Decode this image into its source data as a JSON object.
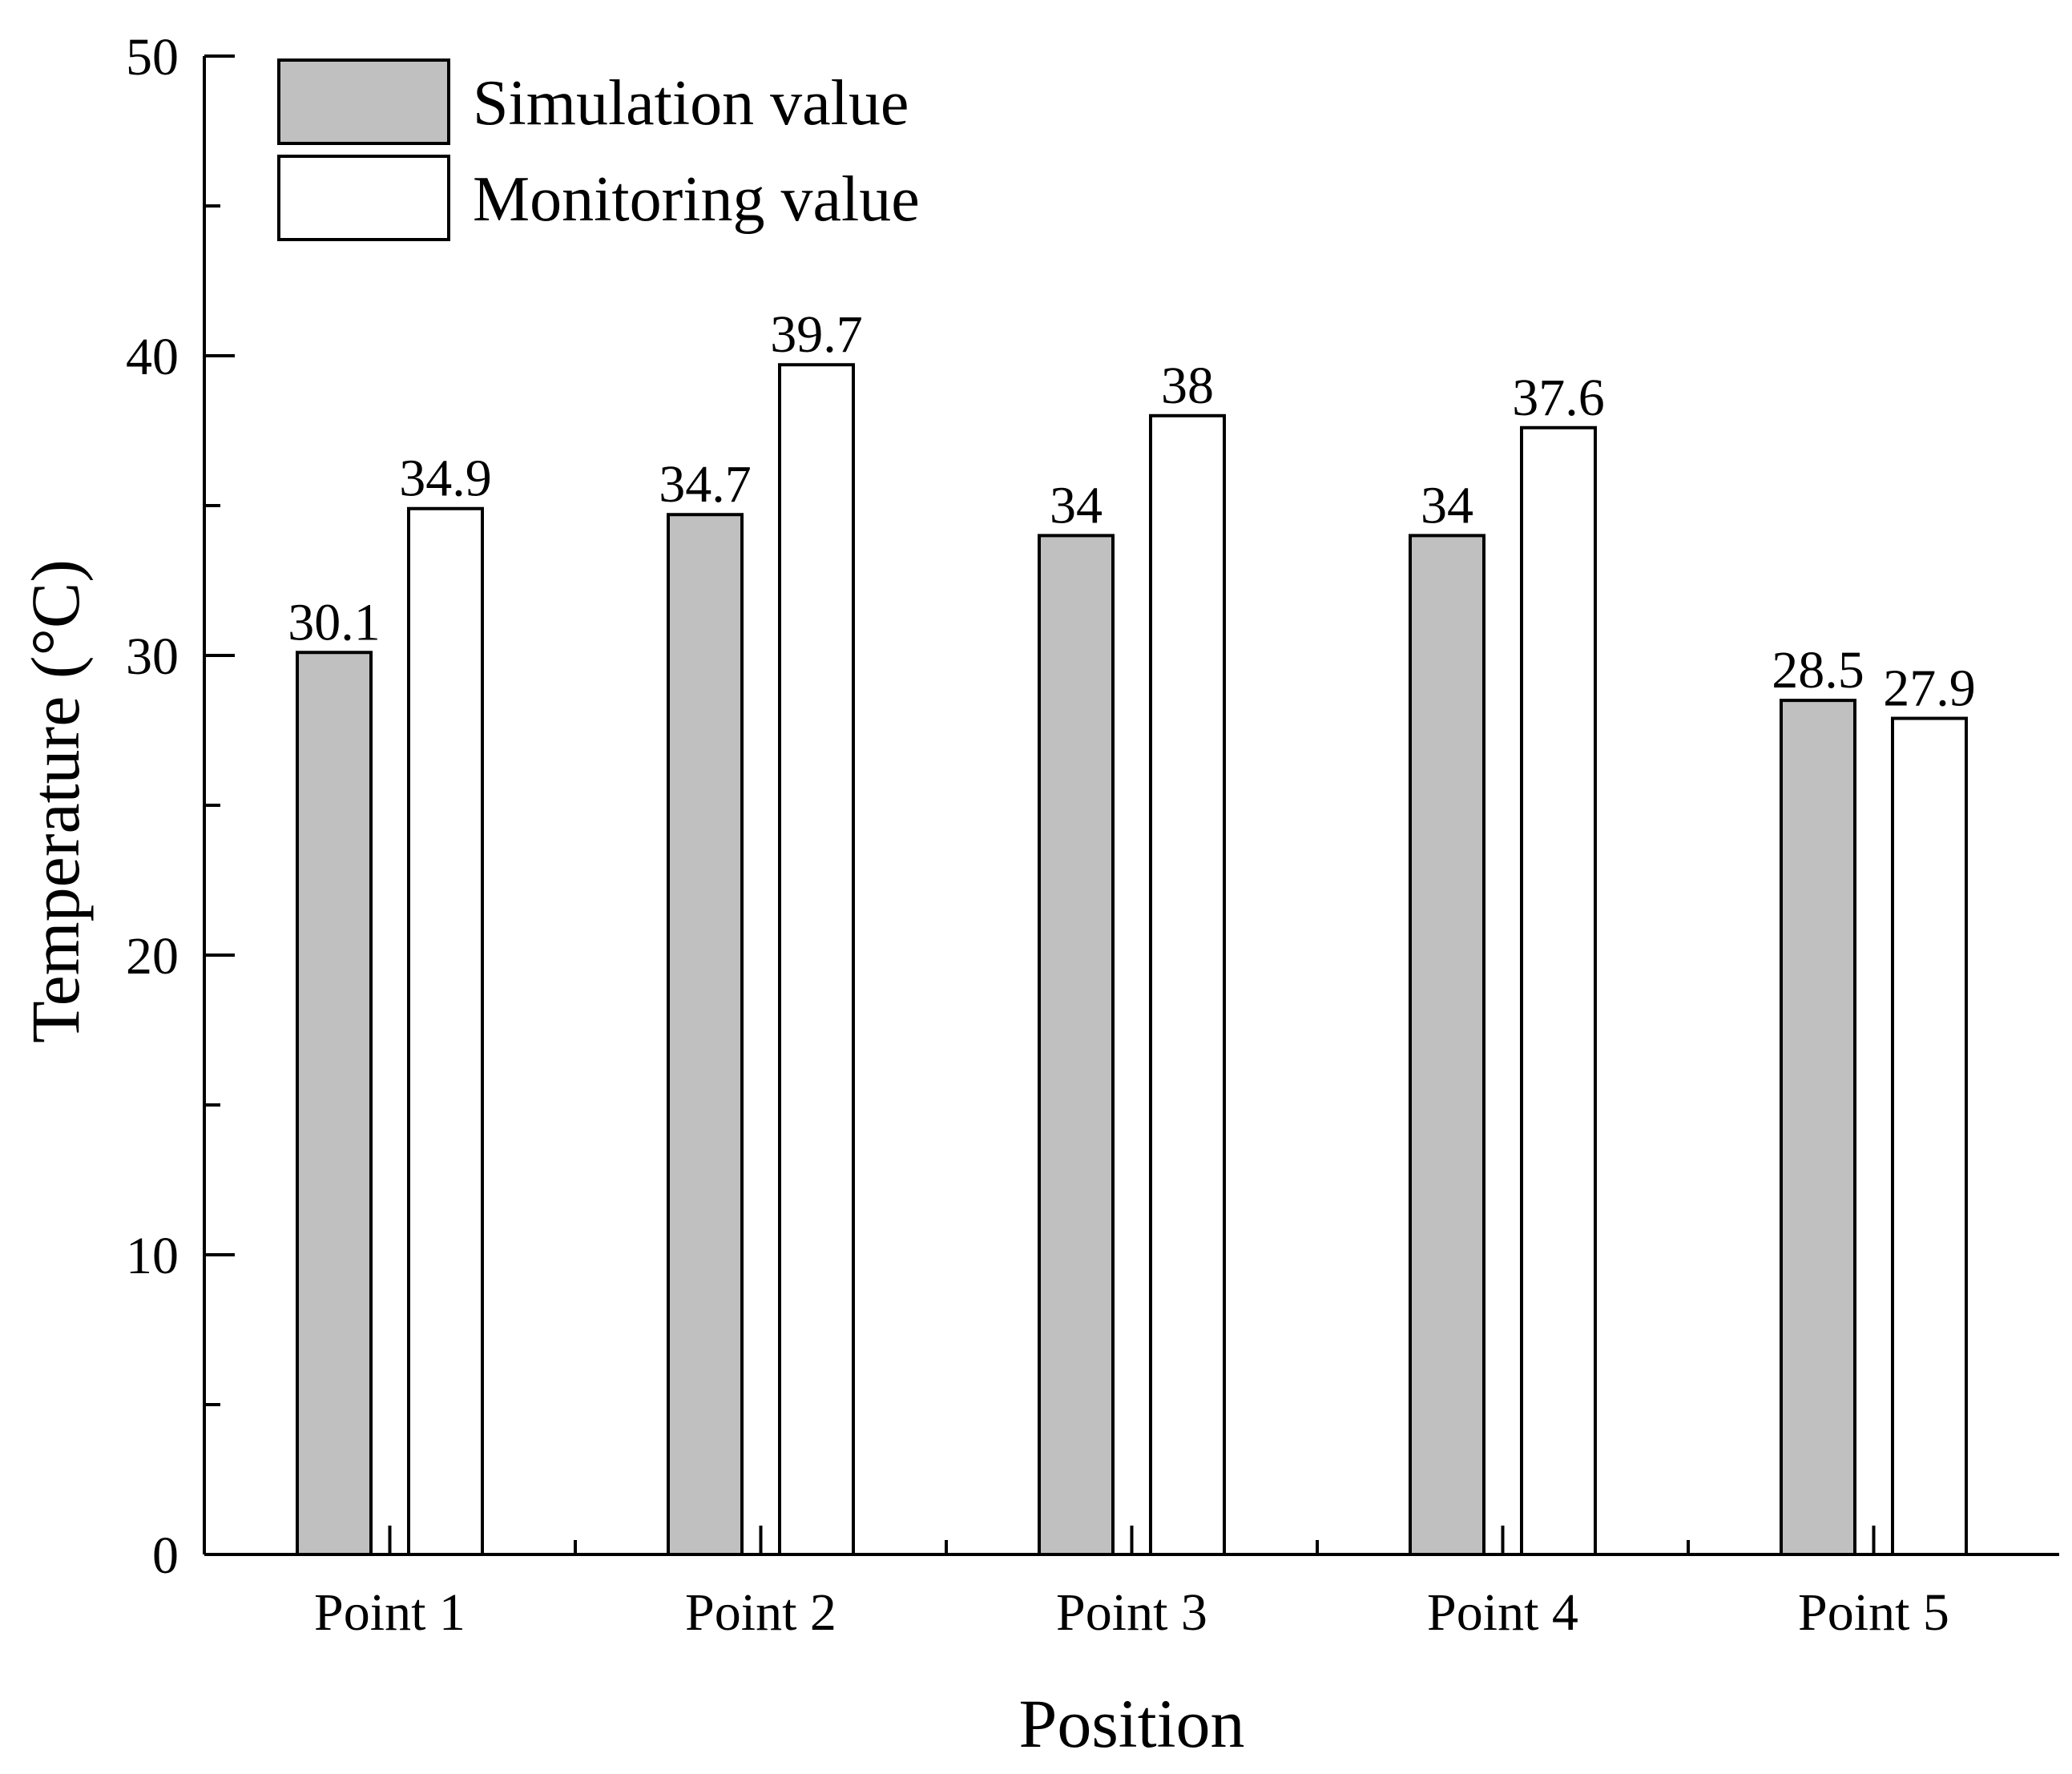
{
  "chart_data": {
    "type": "bar",
    "title": "",
    "xlabel": "Position",
    "ylabel": "Temperature (°C)",
    "categories": [
      "Point 1",
      "Point 2",
      "Point 3",
      "Point 4",
      "Point 5"
    ],
    "series": [
      {
        "name": "Simulation value",
        "values": [
          30.1,
          34.7,
          34,
          34,
          28.5
        ],
        "color": "#c0c0c0"
      },
      {
        "name": "Monitoring value",
        "values": [
          34.9,
          39.7,
          38,
          37.6,
          27.9
        ],
        "color": "#ffffff"
      }
    ],
    "ylim": [
      0,
      50
    ],
    "yticks": [
      0,
      10,
      20,
      30,
      40,
      50
    ],
    "grid": false,
    "legend_position": "top-left"
  }
}
